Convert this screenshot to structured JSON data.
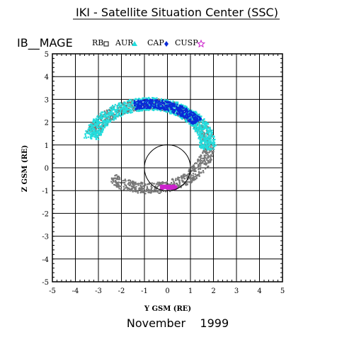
{
  "header": {
    "title": "IKI - Satellite Situation Center (SSC)",
    "satellite": "IB__MAGE",
    "date": "November    1999"
  },
  "chart_data": {
    "type": "scatter",
    "xlabel": "Y GSM (RE)",
    "ylabel": "Z GSM (RE)",
    "xlim": [
      -5,
      5
    ],
    "ylim": [
      -5,
      5
    ],
    "xticks": [
      -5,
      -4,
      -3,
      -2,
      -1,
      0,
      1,
      2,
      3,
      4,
      5
    ],
    "yticks": [
      -5,
      -4,
      -3,
      -2,
      -1,
      0,
      1,
      2,
      3,
      4,
      5
    ],
    "grid": true,
    "earth": {
      "center": [
        0,
        0
      ],
      "radius": 1
    },
    "legend_position": "top",
    "series": [
      {
        "name": "RB",
        "marker": "square",
        "color": "#777777",
        "ring": {
          "ellipse_center": [
            -0.8,
            0.95
          ],
          "ellipse_radii": [
            2.55,
            1.85
          ],
          "angle_range_deg": [
            -130,
            165
          ],
          "width": 0.3,
          "density": 1400
        }
      },
      {
        "name": "AUR",
        "marker": "triangle",
        "color": "#22dddd",
        "ring": {
          "ellipse_center": [
            -0.8,
            0.95
          ],
          "ellipse_radii": [
            2.55,
            1.85
          ],
          "angle_range_deg": [
            -5,
            170
          ],
          "width": 0.35,
          "density": 1100
        }
      },
      {
        "name": "CAP",
        "marker": "diamond",
        "color": "#0a2ad6",
        "ring": {
          "ellipse_center": [
            -0.8,
            0.95
          ],
          "ellipse_radii": [
            2.55,
            1.85
          ],
          "angle_range_deg": [
            35,
            105
          ],
          "width": 0.25,
          "density": 500
        }
      },
      {
        "name": "CUSP",
        "marker": "star",
        "color": "#cc22cc",
        "cluster": {
          "center": [
            0.05,
            -0.85
          ],
          "spread": [
            0.35,
            0.08
          ],
          "count": 90
        }
      }
    ]
  }
}
